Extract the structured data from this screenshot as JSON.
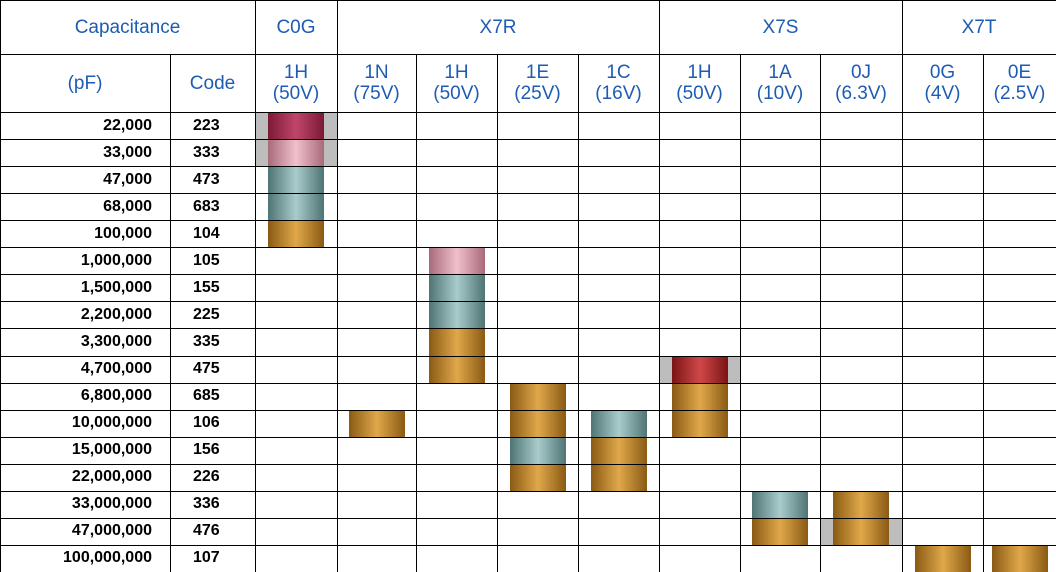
{
  "header": {
    "capacitance": "Capacitance",
    "unit": "(pF)",
    "code": "Code",
    "groups": [
      {
        "name": "C0G",
        "columns": [
          {
            "code": "1H",
            "voltage": "(50V)"
          }
        ]
      },
      {
        "name": "X7R",
        "columns": [
          {
            "code": "1N",
            "voltage": "(75V)"
          },
          {
            "code": "1H",
            "voltage": "(50V)"
          },
          {
            "code": "1E",
            "voltage": "(25V)"
          },
          {
            "code": "1C",
            "voltage": "(16V)"
          }
        ]
      },
      {
        "name": "X7S",
        "columns": [
          {
            "code": "1H",
            "voltage": "(50V)"
          },
          {
            "code": "1A",
            "voltage": "(10V)"
          },
          {
            "code": "0J",
            "voltage": "(6.3V)"
          }
        ]
      },
      {
        "name": "X7T",
        "columns": [
          {
            "code": "0G",
            "voltage": "(4V)"
          },
          {
            "code": "0E",
            "voltage": "(2.5V)"
          }
        ]
      }
    ]
  },
  "rows": [
    {
      "capacitance": "22,000",
      "code": "223"
    },
    {
      "capacitance": "33,000",
      "code": "333"
    },
    {
      "capacitance": "47,000",
      "code": "473"
    },
    {
      "capacitance": "68,000",
      "code": "683"
    },
    {
      "capacitance": "100,000",
      "code": "104"
    },
    {
      "capacitance": "1,000,000",
      "code": "105"
    },
    {
      "capacitance": "1,500,000",
      "code": "155"
    },
    {
      "capacitance": "2,200,000",
      "code": "225"
    },
    {
      "capacitance": "3,300,000",
      "code": "335"
    },
    {
      "capacitance": "4,700,000",
      "code": "475"
    },
    {
      "capacitance": "6,800,000",
      "code": "685"
    },
    {
      "capacitance": "10,000,000",
      "code": "106"
    },
    {
      "capacitance": "15,000,000",
      "code": "156"
    },
    {
      "capacitance": "22,000,000",
      "code": "226"
    },
    {
      "capacitance": "33,000,000",
      "code": "336"
    },
    {
      "capacitance": "47,000,000",
      "code": "476"
    },
    {
      "capacitance": "100,000,000",
      "code": "107"
    }
  ]
}
